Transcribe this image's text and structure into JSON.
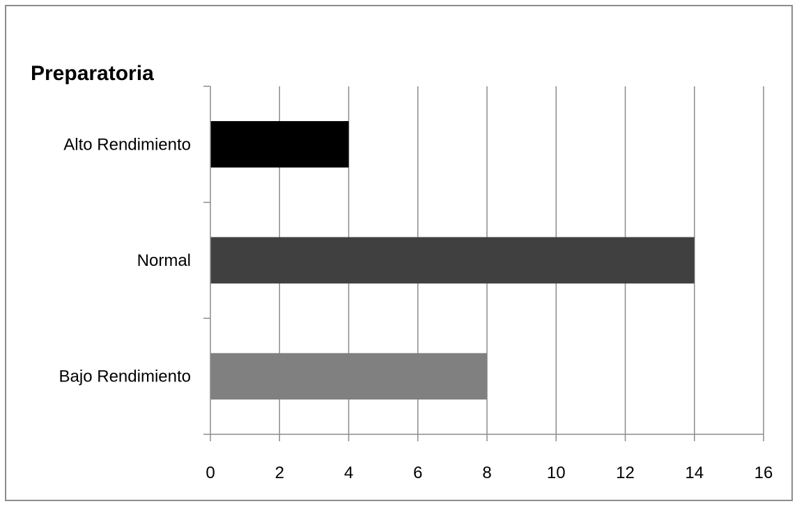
{
  "chart_data": {
    "type": "bar",
    "orientation": "horizontal",
    "title": "Preparatoria",
    "categories": [
      "Alto Rendimiento",
      "Normal",
      "Bajo Rendimiento"
    ],
    "values": [
      4,
      14,
      8
    ],
    "colors": [
      "#000000",
      "#404040",
      "#808080"
    ],
    "xlim": [
      0,
      16
    ],
    "xticks": [
      0,
      2,
      4,
      6,
      8,
      10,
      12,
      14,
      16
    ],
    "xlabel": "",
    "ylabel": "",
    "grid": "vertical",
    "legend": "none"
  }
}
